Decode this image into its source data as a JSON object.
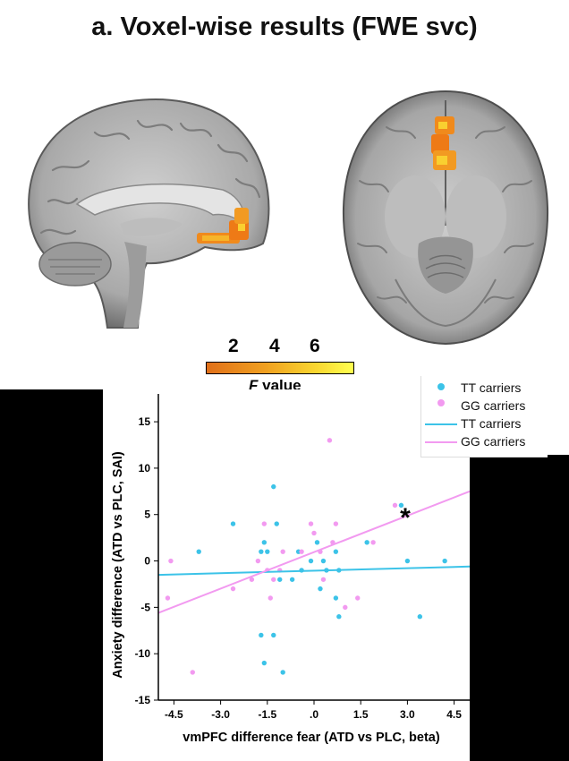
{
  "figure": {
    "title": "a. Voxel-wise results (FWE svc)",
    "colorbar": {
      "ticks": [
        "2",
        "4",
        "6"
      ],
      "label_italic": "F",
      "label_rest": " value"
    }
  },
  "chart_data": {
    "type": "scatter",
    "title": "",
    "xlabel": "vmPFC difference fear (ATD vs PLC, beta)",
    "ylabel": "Anxiety difference (ATD vs PLC, SAI)",
    "xlim": [
      -5.0,
      5.0
    ],
    "ylim": [
      -15,
      18
    ],
    "x_ticks": [
      -4.5,
      -3.0,
      -1.5,
      0.0,
      1.5,
      3.0,
      4.5
    ],
    "x_tick_labels": [
      "-4.5",
      "-3.0",
      "-1.5",
      ".0",
      "1.5",
      "3.0",
      "4.5"
    ],
    "y_ticks": [
      -15,
      -10,
      -5,
      0,
      5,
      10,
      15
    ],
    "y_tick_labels": [
      "-15",
      "-10",
      "-5",
      "0",
      "5",
      "10",
      "15"
    ],
    "annotation": "*",
    "series": [
      {
        "name": "TT carriers",
        "color": "#3cc3e8",
        "points": [
          [
            -3.7,
            1
          ],
          [
            -2.6,
            4
          ],
          [
            -1.7,
            1
          ],
          [
            -1.6,
            2
          ],
          [
            -1.5,
            1
          ],
          [
            -1.3,
            8
          ],
          [
            -1.2,
            4
          ],
          [
            -1.7,
            -8
          ],
          [
            -1.3,
            -8
          ],
          [
            -1.6,
            -11
          ],
          [
            -1.0,
            -12
          ],
          [
            -1.1,
            -2
          ],
          [
            -0.7,
            -2
          ],
          [
            -0.5,
            1
          ],
          [
            -0.4,
            -1
          ],
          [
            -0.1,
            0
          ],
          [
            0.1,
            2
          ],
          [
            0.2,
            -3
          ],
          [
            0.3,
            0
          ],
          [
            0.4,
            -1
          ],
          [
            0.7,
            1
          ],
          [
            0.7,
            -4
          ],
          [
            0.8,
            -6
          ],
          [
            0.8,
            -1
          ],
          [
            1.7,
            2
          ],
          [
            2.8,
            6
          ],
          [
            3.0,
            0
          ],
          [
            3.4,
            -6
          ],
          [
            4.2,
            0
          ]
        ],
        "fit": {
          "x": [
            -5.0,
            5.0
          ],
          "y": [
            -1.5,
            -0.6
          ]
        }
      },
      {
        "name": "GG carriers",
        "color": "#f29af0",
        "points": [
          [
            -4.6,
            0
          ],
          [
            -4.7,
            -4
          ],
          [
            -3.9,
            -12
          ],
          [
            -2.6,
            -3
          ],
          [
            -2.0,
            -2
          ],
          [
            -1.8,
            0
          ],
          [
            -1.6,
            4
          ],
          [
            -1.5,
            -1
          ],
          [
            -1.4,
            -4
          ],
          [
            -1.3,
            -2
          ],
          [
            -1.1,
            -1
          ],
          [
            -1.0,
            1
          ],
          [
            -0.4,
            1
          ],
          [
            -0.1,
            4
          ],
          [
            0.0,
            3
          ],
          [
            0.2,
            1
          ],
          [
            0.3,
            -2
          ],
          [
            0.5,
            13
          ],
          [
            0.6,
            2
          ],
          [
            0.7,
            4
          ],
          [
            1.0,
            -5
          ],
          [
            1.4,
            -4
          ],
          [
            1.9,
            2
          ],
          [
            2.6,
            6
          ]
        ],
        "fit": {
          "x": [
            -5.0,
            5.0
          ],
          "y": [
            -5.6,
            7.5
          ]
        }
      }
    ],
    "legend": [
      {
        "label": "TT carriers",
        "kind": "marker",
        "color": "#3cc3e8"
      },
      {
        "label": "GG carriers",
        "kind": "marker",
        "color": "#f29af0"
      },
      {
        "label": "TT carriers",
        "kind": "line",
        "color": "#3cc3e8"
      },
      {
        "label": "GG carriers",
        "kind": "line",
        "color": "#f29af0"
      }
    ],
    "legend_position": "top-right"
  }
}
